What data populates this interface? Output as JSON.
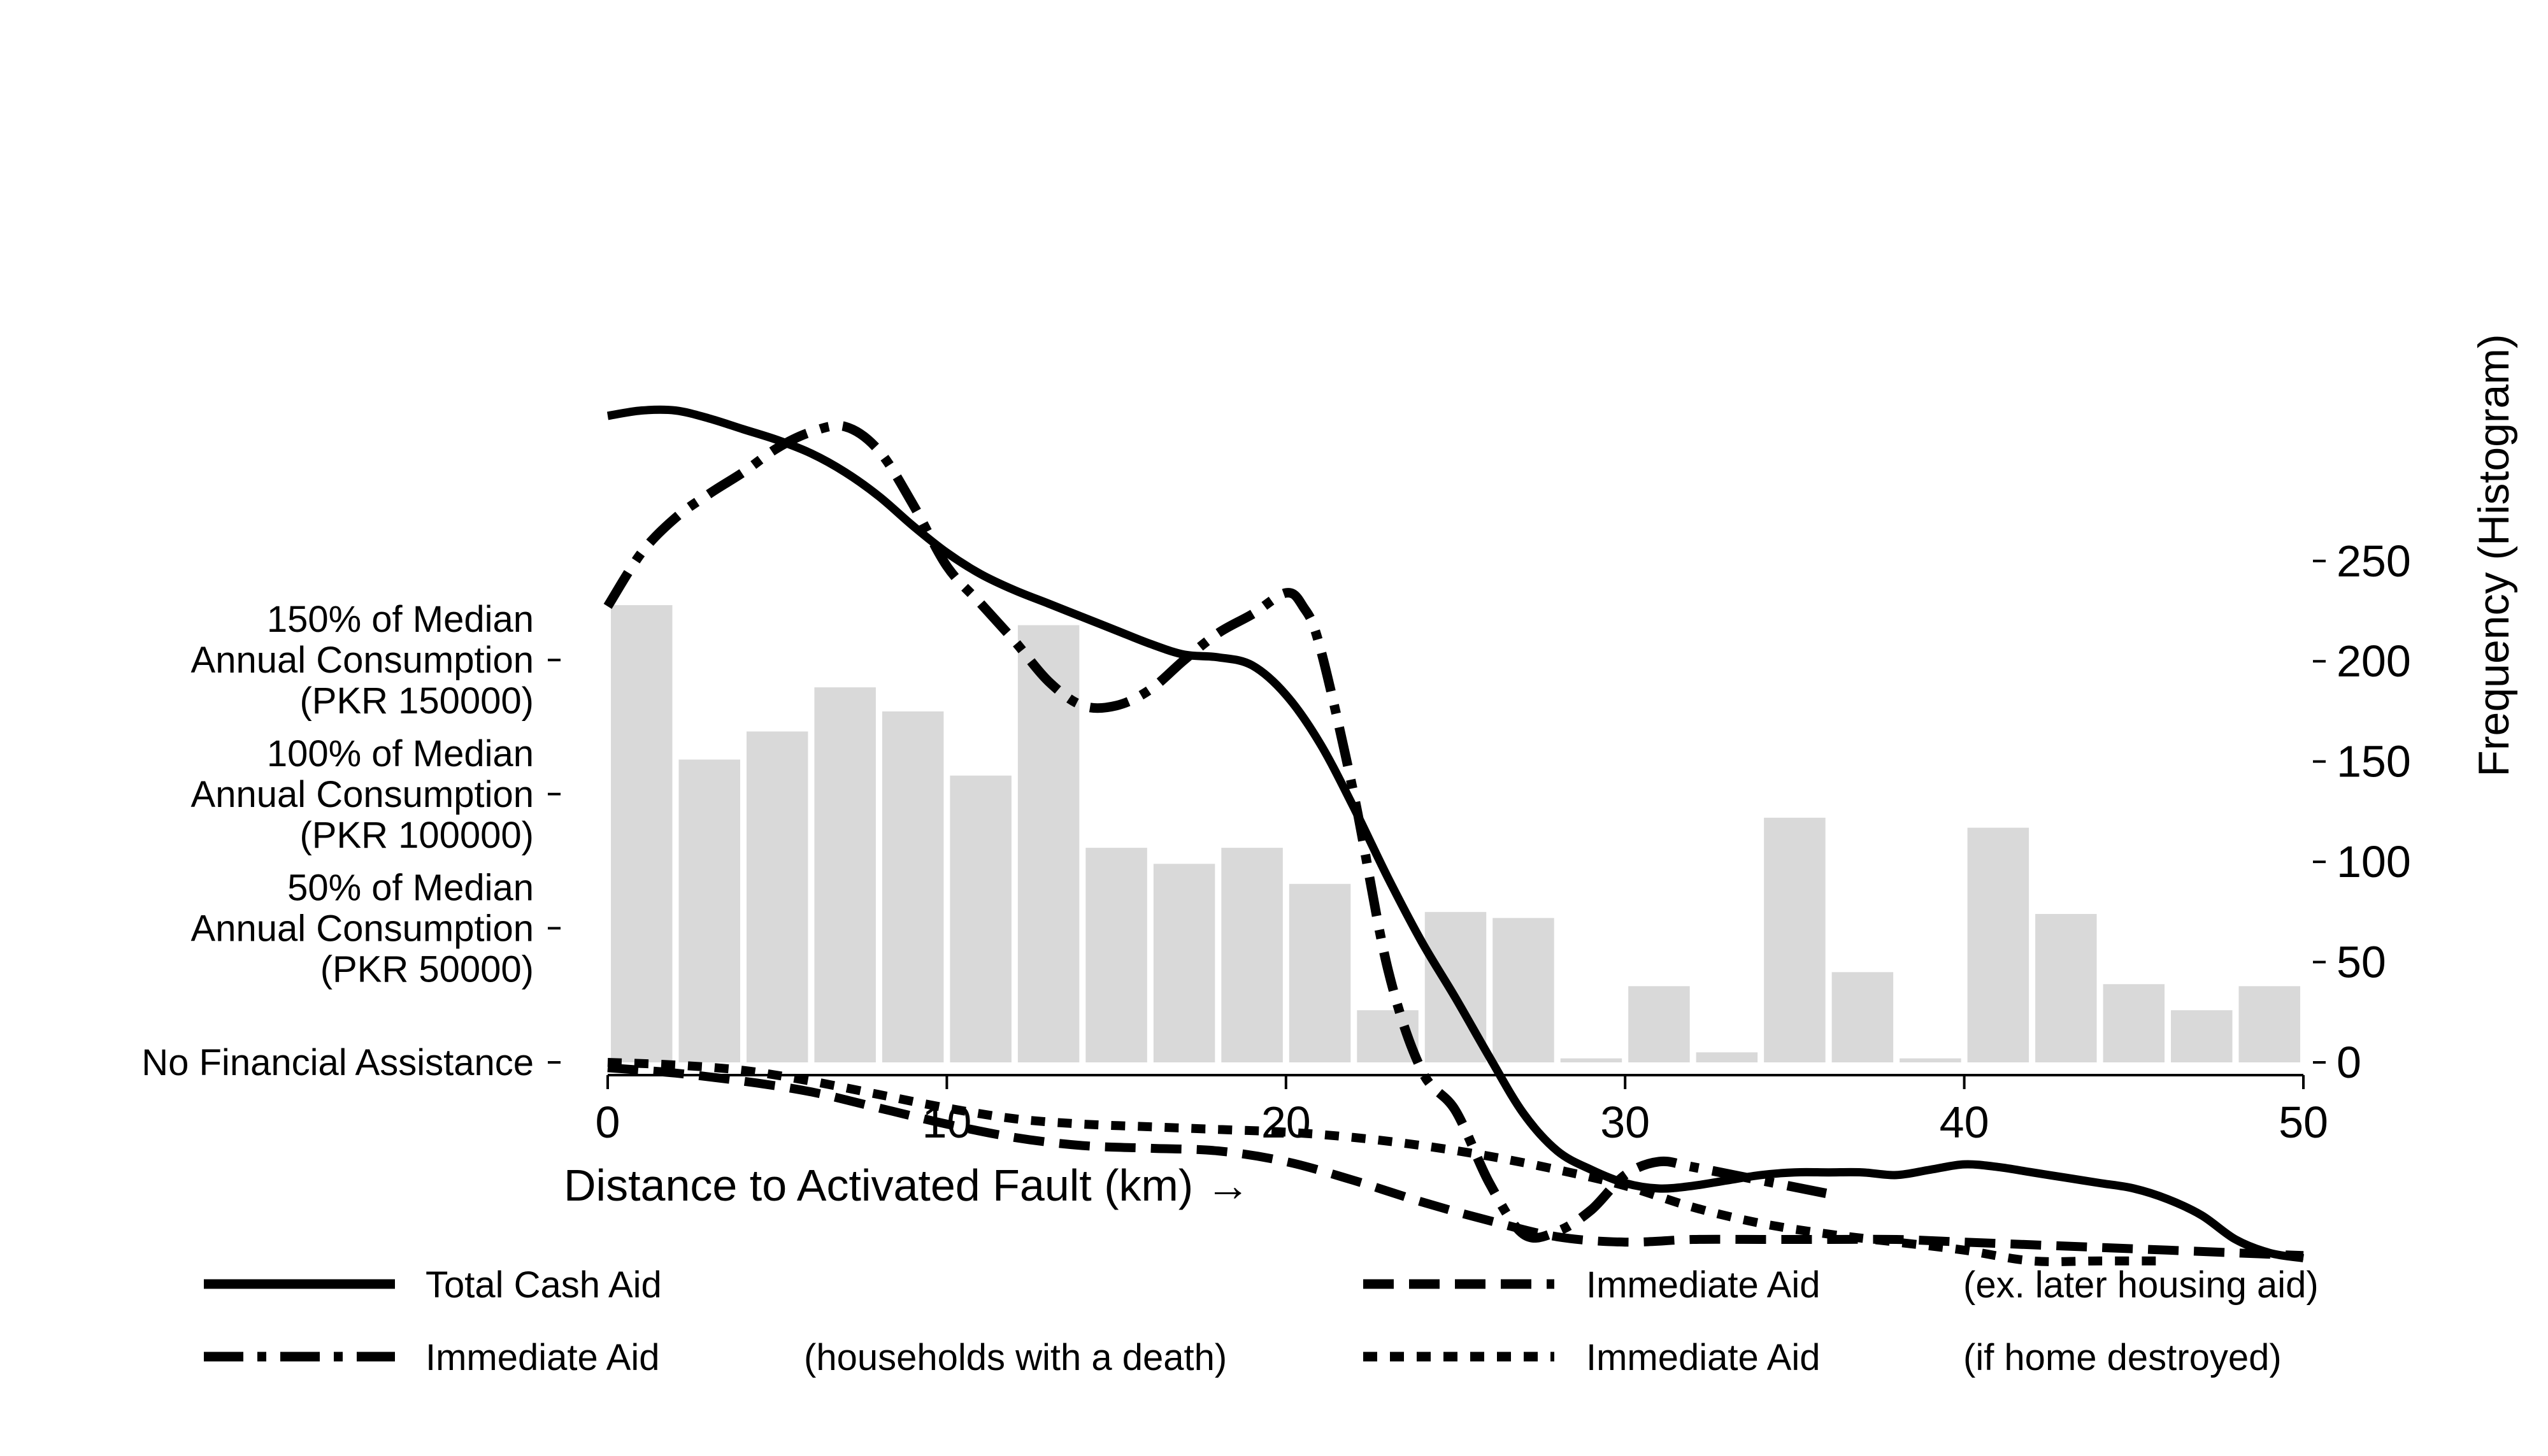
{
  "chart_data": {
    "type": "line",
    "xlabel": "Distance to Activated Fault (km) →",
    "y2label": "Frequency (Histogram)",
    "xlim": [
      0,
      50
    ],
    "ylim_hist": [
      0,
      250
    ],
    "x_ticks": [
      "0",
      "10",
      "20",
      "30",
      "40",
      "50"
    ],
    "y2_ticks": [
      "0",
      "50",
      "100",
      "150",
      "200",
      "250"
    ],
    "y_left_ticks": [
      {
        "value": 0,
        "lines": [
          "No Financial Assistance"
        ]
      },
      {
        "value": 50000,
        "lines": [
          "50% of Median",
          "Annual Consumption",
          "(PKR 50000)"
        ]
      },
      {
        "value": 100000,
        "lines": [
          "100% of Median",
          "Annual Consumption",
          "(PKR 100000)"
        ]
      },
      {
        "value": 150000,
        "lines": [
          "150% of Median",
          "Annual Consumption",
          "(PKR 150000)"
        ]
      }
    ],
    "histogram": {
      "bin_width": 2,
      "bins": [
        {
          "x": 0,
          "count": 228
        },
        {
          "x": 2,
          "count": 151
        },
        {
          "x": 4,
          "count": 165
        },
        {
          "x": 6,
          "count": 187
        },
        {
          "x": 8,
          "count": 175
        },
        {
          "x": 10,
          "count": 143
        },
        {
          "x": 12,
          "count": 218
        },
        {
          "x": 14,
          "count": 107
        },
        {
          "x": 16,
          "count": 99
        },
        {
          "x": 18,
          "count": 107
        },
        {
          "x": 20,
          "count": 89
        },
        {
          "x": 22,
          "count": 26
        },
        {
          "x": 24,
          "count": 75
        },
        {
          "x": 26,
          "count": 72
        },
        {
          "x": 28,
          "count": 2
        },
        {
          "x": 30,
          "count": 38
        },
        {
          "x": 32,
          "count": 5
        },
        {
          "x": 34,
          "count": 122
        },
        {
          "x": 36,
          "count": 45
        },
        {
          "x": 38,
          "count": 2
        },
        {
          "x": 40,
          "count": 117
        },
        {
          "x": 42,
          "count": 74
        },
        {
          "x": 44,
          "count": 39
        },
        {
          "x": 46,
          "count": 26
        },
        {
          "x": 48,
          "count": 38
        }
      ]
    },
    "series": [
      {
        "name": "Total Cash Aid",
        "style": "solid",
        "points": [
          [
            0,
            241000
          ],
          [
            1,
            243000
          ],
          [
            2,
            243000
          ],
          [
            3,
            240000
          ],
          [
            4,
            236000
          ],
          [
            5,
            232000
          ],
          [
            6,
            227000
          ],
          [
            7,
            220000
          ],
          [
            8,
            211000
          ],
          [
            9,
            200000
          ],
          [
            10,
            190000
          ],
          [
            11,
            182000
          ],
          [
            12,
            176000
          ],
          [
            13,
            171000
          ],
          [
            14,
            166000
          ],
          [
            15,
            161000
          ],
          [
            16,
            156000
          ],
          [
            17,
            152000
          ],
          [
            18,
            151000
          ],
          [
            19,
            148000
          ],
          [
            20,
            137000
          ],
          [
            21,
            119000
          ],
          [
            22,
            95000
          ],
          [
            23,
            69000
          ],
          [
            24,
            45000
          ],
          [
            25,
            24000
          ],
          [
            26,
            2000
          ],
          [
            27,
            -19000
          ],
          [
            28,
            -33000
          ],
          [
            29,
            -40000
          ],
          [
            30,
            -45000
          ],
          [
            31,
            -47000
          ],
          [
            32,
            -46000
          ],
          [
            33,
            -44000
          ],
          [
            34,
            -42000
          ],
          [
            35,
            -41000
          ],
          [
            36,
            -41000
          ],
          [
            37,
            -41000
          ],
          [
            38,
            -42000
          ],
          [
            39,
            -40000
          ],
          [
            40,
            -38000
          ],
          [
            41,
            -39000
          ],
          [
            42,
            -41000
          ],
          [
            43,
            -43000
          ],
          [
            44,
            -45000
          ],
          [
            45,
            -47000
          ],
          [
            46,
            -51000
          ],
          [
            47,
            -57000
          ],
          [
            48,
            -66000
          ],
          [
            49,
            -71000
          ],
          [
            50,
            -73000
          ]
        ]
      },
      {
        "name": "Immediate Aid",
        "note": "(households with a death)",
        "style": "dashdot",
        "points": [
          [
            0,
            170000
          ],
          [
            1,
            190000
          ],
          [
            2,
            203000
          ],
          [
            3,
            212000
          ],
          [
            4,
            220000
          ],
          [
            5,
            229000
          ],
          [
            6,
            235000
          ],
          [
            7,
            237000
          ],
          [
            8,
            228000
          ],
          [
            9,
            208000
          ],
          [
            10,
            185000
          ],
          [
            11,
            171000
          ],
          [
            12,
            157000
          ],
          [
            13,
            142000
          ],
          [
            14,
            133000
          ],
          [
            15,
            133000
          ],
          [
            16,
            139000
          ],
          [
            17,
            150000
          ],
          [
            18,
            160000
          ],
          [
            19,
            167000
          ],
          [
            20,
            175000
          ],
          [
            20.5,
            170000
          ],
          [
            21,
            155000
          ],
          [
            22,
            100000
          ],
          [
            23,
            35000
          ],
          [
            24,
            -3000
          ],
          [
            25,
            -18000
          ],
          [
            26,
            -45000
          ],
          [
            27,
            -64000
          ],
          [
            28,
            -63000
          ],
          [
            29,
            -55000
          ],
          [
            30,
            -42000
          ],
          [
            31,
            -37000
          ],
          [
            32,
            -39000
          ],
          [
            34,
            -44000
          ],
          [
            36,
            -49000
          ]
        ]
      },
      {
        "name": "Immediate Aid",
        "note": "(ex. later housing aid)",
        "style": "dashed",
        "points": [
          [
            0,
            -2000
          ],
          [
            2,
            -4000
          ],
          [
            4,
            -7000
          ],
          [
            6,
            -11000
          ],
          [
            8,
            -17000
          ],
          [
            10,
            -23000
          ],
          [
            12,
            -28000
          ],
          [
            14,
            -31000
          ],
          [
            16,
            -32000
          ],
          [
            18,
            -33000
          ],
          [
            20,
            -37000
          ],
          [
            22,
            -44000
          ],
          [
            24,
            -52000
          ],
          [
            26,
            -59000
          ],
          [
            28,
            -65000
          ],
          [
            30,
            -67000
          ],
          [
            32,
            -66000
          ],
          [
            34,
            -66000
          ],
          [
            36,
            -66000
          ],
          [
            38,
            -66000
          ],
          [
            40,
            -67000
          ],
          [
            42,
            -68000
          ],
          [
            44,
            -69000
          ],
          [
            46,
            -70000
          ],
          [
            48,
            -71000
          ],
          [
            50,
            -72000
          ]
        ]
      },
      {
        "name": "Immediate Aid",
        "note": "(if home destroyed)",
        "style": "dotted",
        "points": [
          [
            0,
            0
          ],
          [
            2,
            -1000
          ],
          [
            4,
            -3000
          ],
          [
            6,
            -7000
          ],
          [
            8,
            -12000
          ],
          [
            10,
            -17000
          ],
          [
            12,
            -21000
          ],
          [
            14,
            -23000
          ],
          [
            16,
            -24000
          ],
          [
            18,
            -25000
          ],
          [
            20,
            -26000
          ],
          [
            22,
            -28000
          ],
          [
            24,
            -31000
          ],
          [
            26,
            -35000
          ],
          [
            28,
            -40000
          ],
          [
            30,
            -46000
          ],
          [
            32,
            -54000
          ],
          [
            34,
            -60000
          ],
          [
            36,
            -64000
          ],
          [
            38,
            -67000
          ],
          [
            40,
            -70000
          ],
          [
            42,
            -74000
          ],
          [
            44,
            -74000
          ],
          [
            46,
            -74000
          ]
        ]
      }
    ]
  }
}
